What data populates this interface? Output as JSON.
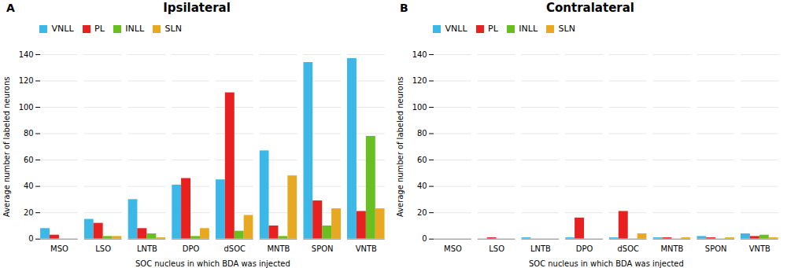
{
  "chart_data": [
    {
      "type": "bar",
      "title": "Ipsilateral",
      "annotations": [
        "A"
      ],
      "xlabel": "SOC nucleus in which BDA was injected",
      "ylabel": "Average number of labeled neurons",
      "categories": [
        "MSO",
        "LSO",
        "LNTB",
        "DPO",
        "dSOC",
        "MNTB",
        "SPON",
        "VNTB"
      ],
      "series": [
        {
          "name": "VNLL",
          "color": "#3CB8E8",
          "values": [
            8,
            15,
            30,
            41,
            45,
            67,
            134,
            137
          ]
        },
        {
          "name": "PL",
          "color": "#E82020",
          "values": [
            3,
            12,
            8,
            46,
            111,
            10,
            29,
            21
          ]
        },
        {
          "name": "INLL",
          "color": "#6ABF20",
          "values": [
            0,
            2,
            4,
            2,
            6,
            2,
            10,
            78
          ]
        },
        {
          "name": "SLN",
          "color": "#E8A820",
          "values": [
            0,
            2,
            1,
            8,
            18,
            48,
            23,
            23
          ]
        }
      ],
      "ylim": [
        0,
        140
      ],
      "yticks": [
        0,
        20,
        40,
        60,
        80,
        100,
        120,
        140
      ],
      "grid": true,
      "legend": "upper left"
    },
    {
      "type": "bar",
      "title": "Contralateral",
      "annotations": [
        "B"
      ],
      "xlabel": "SOC nucleus in which BDA was injected",
      "ylabel": "Average number of labeled neurons",
      "categories": [
        "MSO",
        "LSO",
        "LNTB",
        "DPO",
        "dSOC",
        "MNTB",
        "SPON",
        "VNTB"
      ],
      "series": [
        {
          "name": "VNLL",
          "color": "#3CB8E8",
          "values": [
            0,
            0,
            1,
            1,
            1,
            1,
            2,
            4
          ]
        },
        {
          "name": "PL",
          "color": "#E82020",
          "values": [
            0,
            1,
            0,
            16,
            21,
            1,
            1,
            2
          ]
        },
        {
          "name": "INLL",
          "color": "#6ABF20",
          "values": [
            0,
            0,
            0,
            0,
            0,
            0,
            0,
            3
          ]
        },
        {
          "name": "SLN",
          "color": "#E8A820",
          "values": [
            0,
            0,
            0,
            0,
            4,
            1,
            1,
            1
          ]
        }
      ],
      "ylim": [
        0,
        140
      ],
      "yticks": [
        0,
        20,
        40,
        60,
        80,
        100,
        120,
        140
      ],
      "grid": true,
      "legend": "upper left"
    }
  ]
}
